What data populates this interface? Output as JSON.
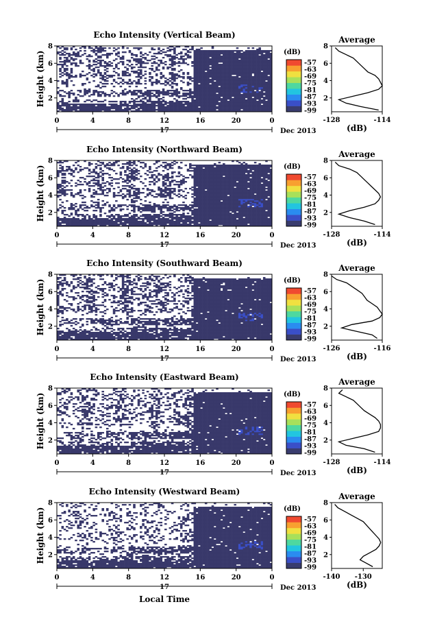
{
  "colorbar": {
    "unit": "(dB)",
    "ticks": [
      "-57",
      "-63",
      "-69",
      "-75",
      "-81",
      "-87",
      "-93",
      "-99"
    ],
    "colors": [
      "#393c6e",
      "#3a4fc8",
      "#2a8cf0",
      "#22c5e0",
      "#4ed8a0",
      "#a8e05a",
      "#f0e040",
      "#f8a030",
      "#f04a30"
    ]
  },
  "common": {
    "day": "17",
    "month_year": "Dec 2013",
    "x_ticks": [
      "0",
      "4",
      "8",
      "12",
      "16",
      "20",
      "0"
    ],
    "y_label": "Height (km)",
    "y_ticks": [
      "2",
      "4",
      "6",
      "8"
    ],
    "profile_title": "Average",
    "profile_xlabel": "(dB)",
    "bottom_xlabel": "Local Time",
    "fill_color": "#39396b"
  },
  "chart_data": [
    {
      "type": "heatmap",
      "title": "Echo Intensity (Vertical Beam)",
      "x_range_hours": [
        0,
        24
      ],
      "y_range_km": [
        0.4,
        8
      ],
      "profile": {
        "type": "line",
        "x_ticks": [
          "-128",
          "-114"
        ],
        "xlim": [
          -128,
          -114
        ],
        "height_km": [
          0.6,
          1.0,
          1.4,
          1.8,
          2.2,
          2.6,
          3.0,
          3.4,
          3.8,
          4.2,
          4.6,
          5.0,
          5.4,
          5.8,
          6.2,
          6.6,
          7.0,
          7.4,
          7.8
        ],
        "values_db": [
          -115,
          -120,
          -124,
          -126,
          -122,
          -118,
          -115,
          -114,
          -114.5,
          -115,
          -116,
          -118,
          -119,
          -120,
          -121,
          -122,
          -124,
          -126,
          -127
        ]
      }
    },
    {
      "type": "heatmap",
      "title": "Echo Intensity (Northward Beam)",
      "x_range_hours": [
        0,
        24
      ],
      "y_range_km": [
        0.4,
        8
      ],
      "profile": {
        "type": "line",
        "x_ticks": [
          "-128",
          "-114"
        ],
        "xlim": [
          -128,
          -114
        ],
        "height_km": [
          0.6,
          1.0,
          1.4,
          1.8,
          2.2,
          2.6,
          3.0,
          3.4,
          3.8,
          4.2,
          4.6,
          5.0,
          5.4,
          5.8,
          6.2,
          6.6,
          7.0,
          7.4,
          7.8
        ],
        "values_db": [
          -116,
          -119,
          -123,
          -126,
          -123,
          -119,
          -116,
          -115,
          -114.5,
          -115,
          -116,
          -117,
          -118,
          -119,
          -120,
          -121,
          -123,
          -126,
          -127
        ]
      }
    },
    {
      "type": "heatmap",
      "title": "Echo Intensity (Southward Beam)",
      "x_range_hours": [
        0,
        24
      ],
      "y_range_km": [
        0.4,
        8
      ],
      "profile": {
        "type": "line",
        "x_ticks": [
          "-126",
          "-116"
        ],
        "xlim": [
          -126,
          -116
        ],
        "height_km": [
          0.6,
          1.0,
          1.4,
          1.8,
          2.2,
          2.6,
          3.0,
          3.4,
          3.8,
          4.2,
          4.6,
          5.0,
          5.4,
          5.8,
          6.2,
          6.6,
          7.0,
          7.4,
          7.8
        ],
        "values_db": [
          -117,
          -118,
          -121,
          -124,
          -122,
          -118,
          -116.5,
          -116,
          -116.5,
          -117,
          -118,
          -119,
          -119.5,
          -120,
          -121,
          -122,
          -123,
          -125,
          -126
        ]
      }
    },
    {
      "type": "heatmap",
      "title": "Echo Intensity (Eastward Beam)",
      "x_range_hours": [
        0,
        24
      ],
      "y_range_km": [
        0.4,
        8
      ],
      "profile": {
        "type": "line",
        "x_ticks": [
          "-128",
          "-114"
        ],
        "xlim": [
          -128,
          -114
        ],
        "height_km": [
          0.6,
          1.0,
          1.4,
          1.8,
          2.2,
          2.6,
          3.0,
          3.4,
          3.8,
          4.2,
          4.6,
          5.0,
          5.4,
          5.8,
          6.2,
          6.6,
          7.0,
          7.4,
          7.8
        ],
        "values_db": [
          -116,
          -119,
          -124,
          -126,
          -122,
          -118,
          -115,
          -114.5,
          -114.5,
          -115,
          -116,
          -117.5,
          -119,
          -120,
          -121,
          -122,
          -124,
          -126,
          -125
        ]
      }
    },
    {
      "type": "heatmap",
      "title": "Echo Intensity (Westward Beam)",
      "x_range_hours": [
        0,
        24
      ],
      "y_range_km": [
        0.4,
        8
      ],
      "profile": {
        "type": "line",
        "x_ticks": [
          "-140",
          "-130"
        ],
        "xlim": [
          -140,
          -124
        ],
        "height_km": [
          0.6,
          1.0,
          1.4,
          1.8,
          2.2,
          2.6,
          3.0,
          3.4,
          3.8,
          4.2,
          4.6,
          5.0,
          5.4,
          5.8,
          6.2,
          6.6,
          7.0,
          7.4,
          7.8
        ],
        "values_db": [
          -127,
          -129,
          -131,
          -130,
          -128,
          -126,
          -125,
          -124.5,
          -125,
          -126,
          -127,
          -128,
          -129,
          -130,
          -132,
          -134,
          -136,
          -138,
          -139
        ]
      }
    }
  ]
}
